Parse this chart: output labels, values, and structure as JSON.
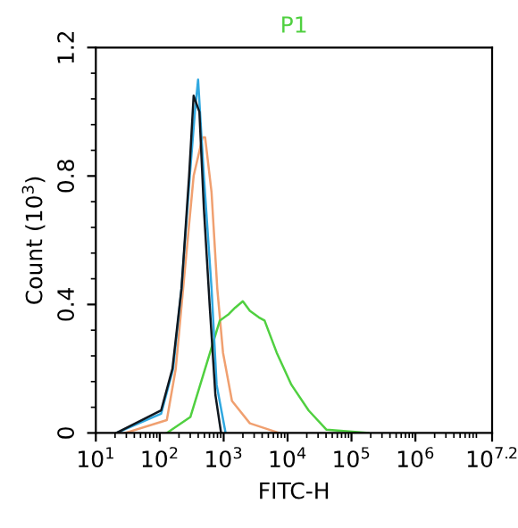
{
  "chart_data": {
    "type": "line",
    "title": "P1",
    "xlabel": "FITC-H",
    "ylabel": "Count (10$^{3}$)",
    "log": "x",
    "xlim": [
      10,
      15848931.92
    ],
    "xticks": [
      {
        "value": 10,
        "label": "10$^{1}$"
      },
      {
        "value": 100,
        "label": "10$^{2}$"
      },
      {
        "value": 1000,
        "label": "10$^{3}$"
      },
      {
        "value": 10000,
        "label": "10$^{4}$"
      },
      {
        "value": 100000,
        "label": "10$^{5}$"
      },
      {
        "value": 1000000,
        "label": "10$^{6}$"
      },
      {
        "value": 15848931.92,
        "label": "10$^{7.2}$"
      }
    ],
    "ylim": [
      0,
      1.2
    ],
    "yticks": [
      0,
      0.4,
      0.8,
      1.2
    ],
    "grid": false,
    "legend": false,
    "series": [
      {
        "color": "#f0a070",
        "x": [
          29,
          129,
          178,
          245,
          339,
          468,
          513,
          646,
          794,
          977,
          1349,
          2570,
          7413
        ],
        "values": [
          0,
          0.04,
          0.2,
          0.5,
          0.8,
          0.92,
          0.92,
          0.75,
          0.45,
          0.25,
          0.1,
          0.03,
          0
        ]
      },
      {
        "color": "#50d040",
        "x": [
          129,
          302,
          513,
          871,
          1202,
          1514,
          1995,
          2570,
          3548,
          4365,
          6761,
          11482,
          21380,
          40738,
          181970
        ],
        "values": [
          0,
          0.05,
          0.2,
          0.35,
          0.37,
          0.39,
          0.41,
          0.38,
          0.36,
          0.35,
          0.25,
          0.15,
          0.07,
          0.01,
          0
        ]
      },
      {
        "color": "#30a8e0",
        "x": [
          21,
          105,
          162,
          219,
          295,
          355,
          398,
          490,
          646,
          776,
          1072
        ],
        "values": [
          0,
          0.06,
          0.2,
          0.45,
          0.8,
          1.0,
          1.1,
          0.8,
          0.45,
          0.15,
          0
        ]
      },
      {
        "color": "#101820",
        "x": [
          21,
          105,
          158,
          219,
          288,
          339,
          417,
          490,
          603,
          741,
          912
        ],
        "values": [
          0,
          0.07,
          0.2,
          0.45,
          0.8,
          1.05,
          1.0,
          0.7,
          0.4,
          0.12,
          0
        ]
      }
    ]
  }
}
